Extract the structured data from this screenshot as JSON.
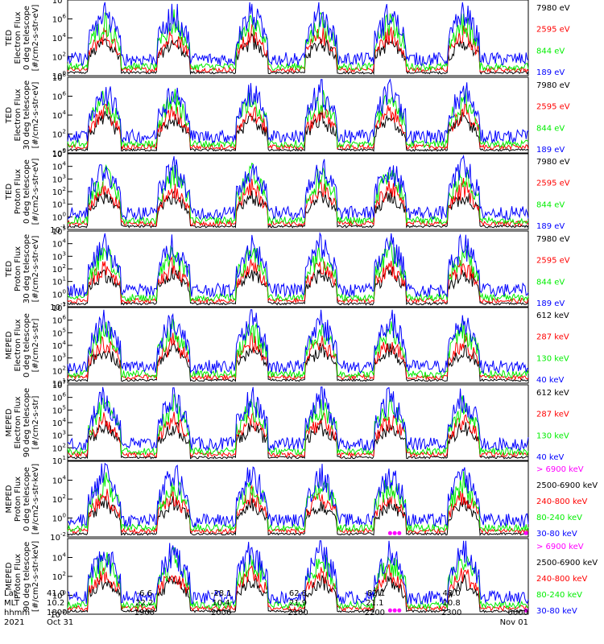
{
  "colors": {
    "blue": "#0000ff",
    "red": "#ff0000",
    "green": "#00ee00",
    "black": "#000000",
    "magenta": "#ff00ff"
  },
  "chart_data": [
    {
      "type": "line",
      "instrument": "TED",
      "ylabel": [
        "TED",
        "Electron Flux",
        "0 deg telescope",
        "[#/cm2-s-str-eV]"
      ],
      "yscale": "log",
      "ylim_exp": [
        0,
        8
      ],
      "ytick_exp": [
        0,
        2,
        4,
        6,
        8
      ],
      "legend": [
        {
          "label": "7980 eV",
          "color": "black"
        },
        {
          "label": "2595 eV",
          "color": "red"
        },
        {
          "label": "844 eV",
          "color": "green"
        },
        {
          "label": "189 eV",
          "color": "blue"
        }
      ]
    },
    {
      "type": "line",
      "instrument": "TED",
      "ylabel": [
        "TED",
        "Electron Flux",
        "30 deg telescope",
        "[#/cm2-s-str-eV]"
      ],
      "yscale": "log",
      "ylim_exp": [
        0,
        8
      ],
      "ytick_exp": [
        0,
        2,
        4,
        6,
        8
      ],
      "legend": [
        {
          "label": "7980 eV",
          "color": "black"
        },
        {
          "label": "2595 eV",
          "color": "red"
        },
        {
          "label": "844 eV",
          "color": "green"
        },
        {
          "label": "189 eV",
          "color": "blue"
        }
      ]
    },
    {
      "type": "line",
      "instrument": "TED",
      "ylabel": [
        "TED",
        "Proton Flux",
        "0 deg telescope",
        "[#/cm2-s-str-eV]"
      ],
      "yscale": "log",
      "ylim_exp": [
        -1,
        5
      ],
      "ytick_exp": [
        -1,
        0,
        1,
        2,
        3,
        4,
        5
      ],
      "legend": [
        {
          "label": "7980 eV",
          "color": "black"
        },
        {
          "label": "2595 eV",
          "color": "red"
        },
        {
          "label": "844 eV",
          "color": "green"
        },
        {
          "label": "189 eV",
          "color": "blue"
        }
      ]
    },
    {
      "type": "line",
      "instrument": "TED",
      "ylabel": [
        "TED",
        "Proton Flux",
        "30 deg telescope",
        "[#/cm2-s-str-eV]"
      ],
      "yscale": "log",
      "ylim_exp": [
        -1,
        5
      ],
      "ytick_exp": [
        -1,
        0,
        1,
        2,
        3,
        4,
        5
      ],
      "legend": [
        {
          "label": "7980 eV",
          "color": "black"
        },
        {
          "label": "2595 eV",
          "color": "red"
        },
        {
          "label": "844 eV",
          "color": "green"
        },
        {
          "label": "189 eV",
          "color": "blue"
        }
      ]
    },
    {
      "type": "line",
      "instrument": "MEPED",
      "ylabel": [
        "MEPED",
        "Electron Flux",
        "0 deg telescope",
        "[#/cm2-s-str]"
      ],
      "yscale": "log",
      "ylim_exp": [
        1,
        7
      ],
      "ytick_exp": [
        1,
        2,
        3,
        4,
        5,
        6,
        7
      ],
      "legend": [
        {
          "label": "612 keV",
          "color": "black"
        },
        {
          "label": "287 keV",
          "color": "red"
        },
        {
          "label": "130 keV",
          "color": "green"
        },
        {
          "label": "40 keV",
          "color": "blue"
        }
      ]
    },
    {
      "type": "line",
      "instrument": "MEPED",
      "ylabel": [
        "MEPED",
        "Electron Flux",
        "90 deg telescope",
        "[#/cm2-s-str]"
      ],
      "yscale": "log",
      "ylim_exp": [
        1,
        7
      ],
      "ytick_exp": [
        1,
        2,
        3,
        4,
        5,
        6,
        7
      ],
      "legend": [
        {
          "label": "612 keV",
          "color": "black"
        },
        {
          "label": "287 keV",
          "color": "red"
        },
        {
          "label": "130 keV",
          "color": "green"
        },
        {
          "label": "40 keV",
          "color": "blue"
        }
      ]
    },
    {
      "type": "line",
      "instrument": "MEPED",
      "ylabel": [
        "MEPED",
        "Proton Flux",
        "0 deg telescope",
        "[#/cm2-s-str-keV]"
      ],
      "yscale": "log",
      "ylim_exp": [
        -2,
        6
      ],
      "ytick_exp": [
        -2,
        0,
        2,
        4
      ],
      "legend": [
        {
          "label": "> 6900 keV",
          "color": "magenta"
        },
        {
          "label": "2500-6900 keV",
          "color": "black"
        },
        {
          "label": "240-800 keV",
          "color": "red"
        },
        {
          "label": "80-240 keV",
          "color": "green"
        },
        {
          "label": "30-80 keV",
          "color": "blue"
        }
      ]
    },
    {
      "type": "line",
      "instrument": "MEPED",
      "ylabel": [
        "MEPED",
        "Proton Flux",
        "90 deg telescope",
        "[#/cm2-s-str-keV]"
      ],
      "yscale": "log",
      "ylim_exp": [
        -2,
        6
      ],
      "ytick_exp": [
        -2,
        0,
        2,
        4
      ],
      "legend": [
        {
          "label": "> 6900 keV",
          "color": "magenta"
        },
        {
          "label": "2500-6900 keV",
          "color": "black"
        },
        {
          "label": "240-800 keV",
          "color": "red"
        },
        {
          "label": "80-240 keV",
          "color": "green"
        },
        {
          "label": "30-80 keV",
          "color": "blue"
        }
      ]
    }
  ],
  "xaxis": {
    "row_labels": [
      "Lat",
      "MLT",
      "hhmm",
      "2021"
    ],
    "ticks": [
      {
        "lat": "41.0",
        "mlt": "10.2",
        "hhmm": "1800",
        "date": "Oct 31"
      },
      {
        "lat": "-6.6",
        "mlt": "22.2",
        "hhmm": "1900",
        "date": ""
      },
      {
        "lat": "-28.1",
        "mlt": "10.4",
        "hhmm": "2000",
        "date": ""
      },
      {
        "lat": "62.8",
        "mlt": "21.9",
        "hhmm": "2100",
        "date": ""
      },
      {
        "lat": "-82.1",
        "mlt": "21.1",
        "hhmm": "2200",
        "date": ""
      },
      {
        "lat": "48.0",
        "mlt": "10.8",
        "hhmm": "2300",
        "date": ""
      },
      {
        "lat": "",
        "mlt": "",
        "hhmm": "0000",
        "date": "Nov 01"
      }
    ]
  }
}
